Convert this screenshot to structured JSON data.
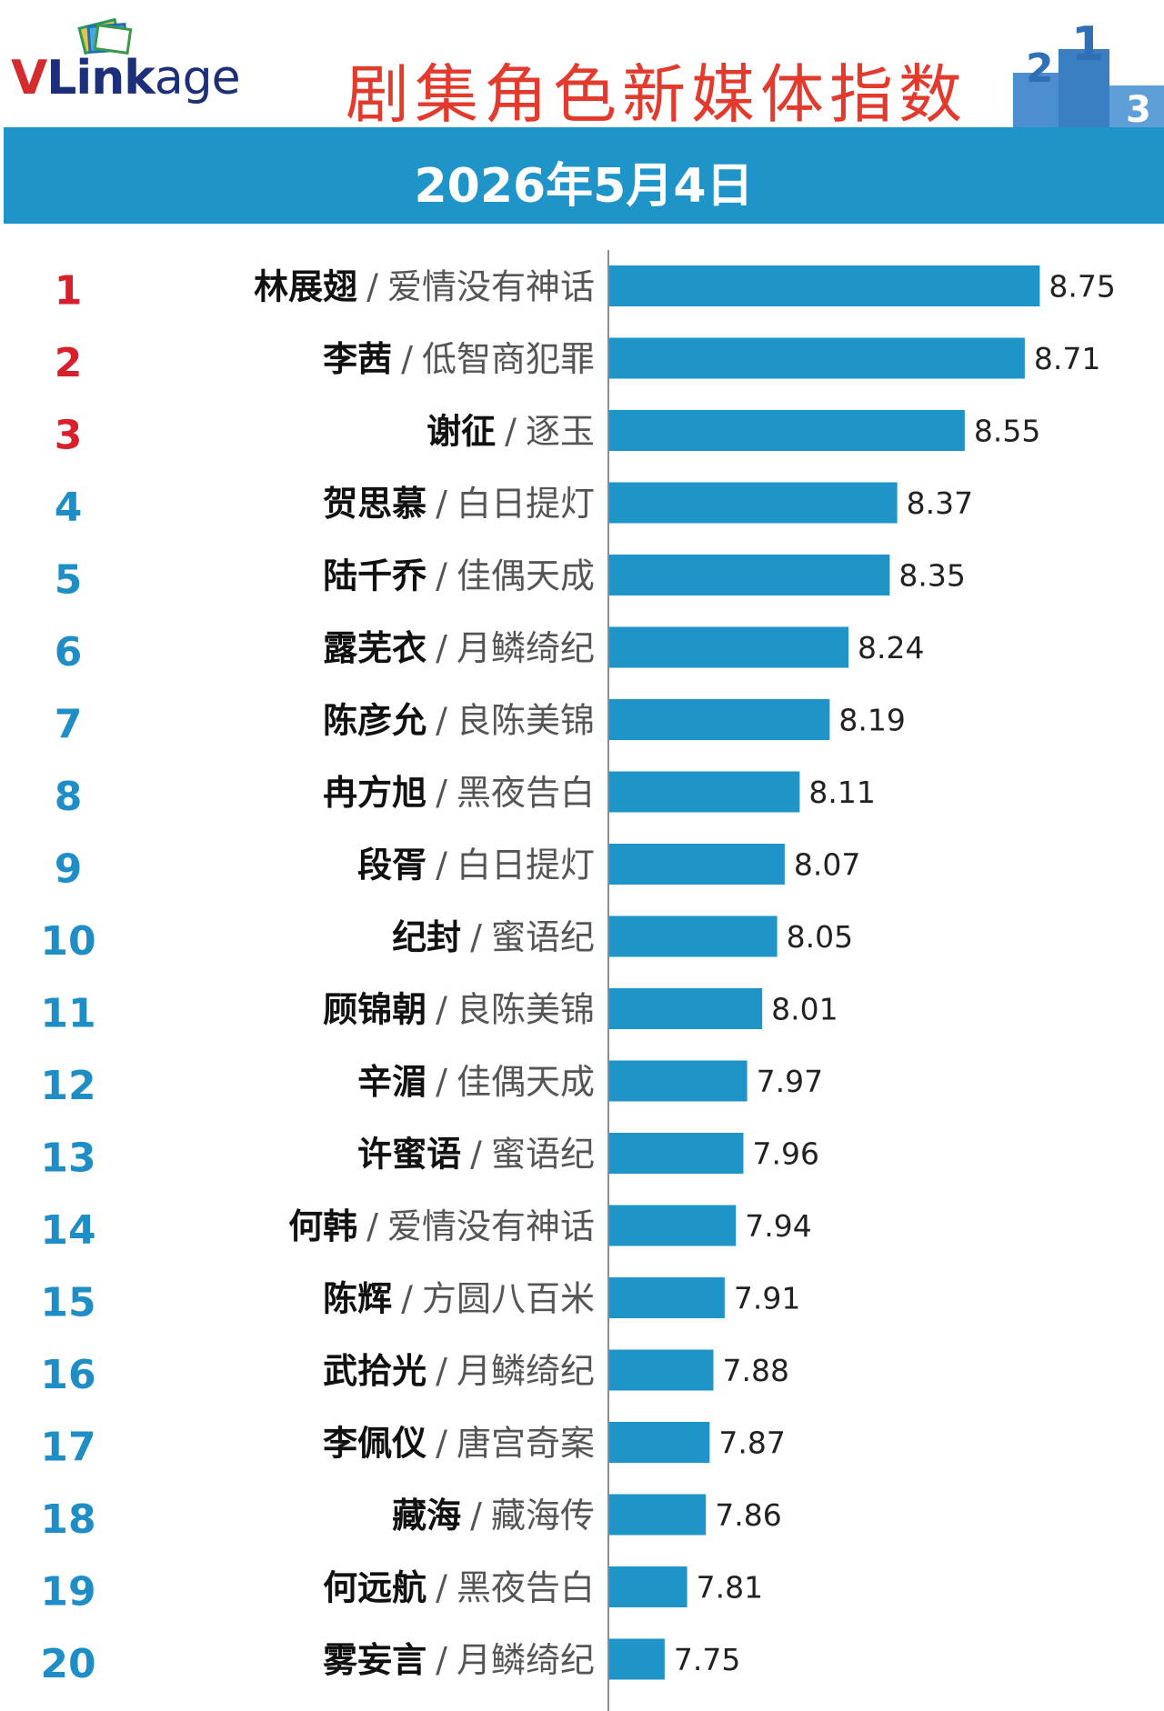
{
  "header": {
    "logo": {
      "v": "V",
      "link": "Link",
      "age": "age"
    },
    "title": "剧集角色新媒体指数",
    "podium_icon": "podium-123-icon",
    "podium_digits": [
      "2",
      "1",
      "3"
    ]
  },
  "date": "2026年5月4日",
  "colors": {
    "bar": "#1f94c8",
    "rank_top": "#d7202c",
    "rank": "#1f8ec6",
    "title": "#e23a2c",
    "band": "#1f94c8"
  },
  "chart_data": {
    "type": "bar",
    "orientation": "horizontal",
    "title": "剧集角色新媒体指数",
    "xlabel": "",
    "ylabel": "",
    "xlim": [
      7.6,
      8.8
    ],
    "grid": false,
    "rows": [
      {
        "rank": "1",
        "name": "林展翅",
        "drama": "爱情没有神话",
        "value": 8.75
      },
      {
        "rank": "2",
        "name": "李茜",
        "drama": "低智商犯罪",
        "value": 8.71
      },
      {
        "rank": "3",
        "name": "谢征",
        "drama": "逐玉",
        "value": 8.55
      },
      {
        "rank": "4",
        "name": "贺思慕",
        "drama": "白日提灯",
        "value": 8.37
      },
      {
        "rank": "5",
        "name": "陆千乔",
        "drama": "佳偶天成",
        "value": 8.35
      },
      {
        "rank": "6",
        "name": "露芜衣",
        "drama": "月鳞绮纪",
        "value": 8.24
      },
      {
        "rank": "7",
        "name": "陈彦允",
        "drama": "良陈美锦",
        "value": 8.19
      },
      {
        "rank": "8",
        "name": "冉方旭",
        "drama": "黑夜告白",
        "value": 8.11
      },
      {
        "rank": "9",
        "name": "段胥",
        "drama": "白日提灯",
        "value": 8.07
      },
      {
        "rank": "10",
        "name": "纪封",
        "drama": "蜜语纪",
        "value": 8.05
      },
      {
        "rank": "11",
        "name": "顾锦朝",
        "drama": "良陈美锦",
        "value": 8.01
      },
      {
        "rank": "12",
        "name": "辛湄",
        "drama": "佳偶天成",
        "value": 7.97
      },
      {
        "rank": "13",
        "name": "许蜜语",
        "drama": "蜜语纪",
        "value": 7.96
      },
      {
        "rank": "14",
        "name": "何韩",
        "drama": "爱情没有神话",
        "value": 7.94
      },
      {
        "rank": "15",
        "name": "陈辉",
        "drama": "方圆八百米",
        "value": 7.91
      },
      {
        "rank": "16",
        "name": "武拾光",
        "drama": "月鳞绮纪",
        "value": 7.88
      },
      {
        "rank": "17",
        "name": "李佩仪",
        "drama": "唐宫奇案",
        "value": 7.87
      },
      {
        "rank": "18",
        "name": "藏海",
        "drama": "藏海传",
        "value": 7.86
      },
      {
        "rank": "19",
        "name": "何远航",
        "drama": "黑夜告白",
        "value": 7.81
      },
      {
        "rank": "20",
        "name": "雾妄言",
        "drama": "月鳞绮纪",
        "value": 7.75
      }
    ]
  }
}
